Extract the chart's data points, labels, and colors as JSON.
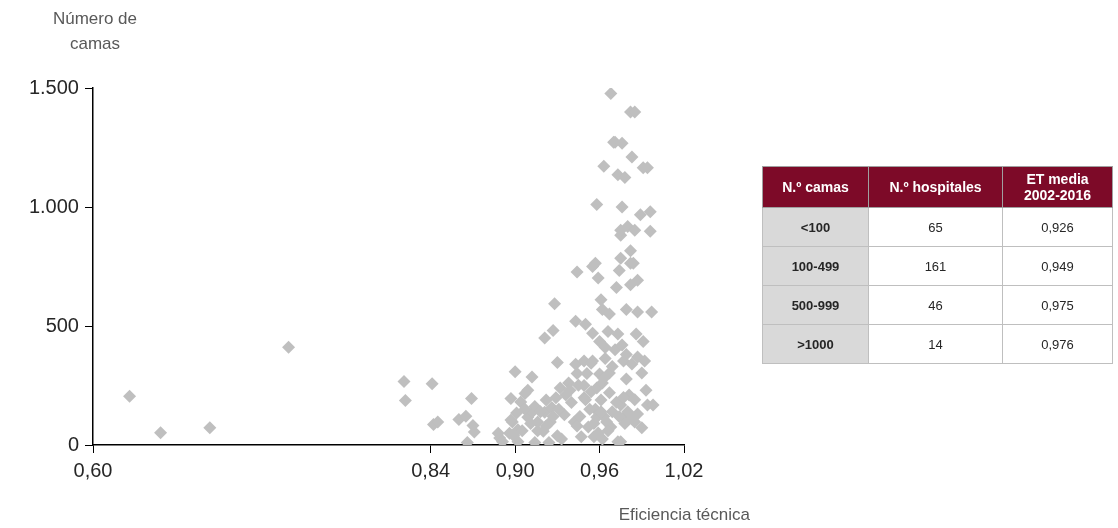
{
  "chart_data": [
    {
      "type": "scatter",
      "xlabel": "Eficiencia técnica",
      "ylabel": "Número de camas",
      "marker": "diamond",
      "xlim": [
        0.6,
        1.02
      ],
      "xticks": [
        {
          "value": 0.6,
          "label": "0,60"
        },
        {
          "value": 0.84,
          "label": "0,84"
        },
        {
          "value": 0.9,
          "label": "0,90"
        },
        {
          "value": 0.96,
          "label": "0,96"
        },
        {
          "value": 1.02,
          "label": "1,02"
        }
      ],
      "ylim": [
        0,
        1500
      ],
      "yticks": [
        0,
        500,
        {
          "value": 1000,
          "label": "1.000"
        },
        {
          "value": 1500,
          "label": "1.500"
        }
      ],
      "series": [
        {
          "color": "#bfbfbf",
          "x": [
            0.626,
            0.648,
            0.683,
            0.739,
            0.821,
            0.822,
            0.841,
            0.842,
            0.845,
            0.86,
            0.865,
            0.869,
            0.87,
            0.871,
            0.866,
            0.888,
            0.889,
            0.891,
            0.897,
            0.896,
            0.898,
            0.897,
            0.9,
            0.899,
            0.901,
            0.902,
            0.902,
            0.904,
            0.907,
            0.909,
            0.912,
            0.909,
            0.912,
            0.914,
            0.914,
            0.916,
            0.92,
            0.921,
            0.922,
            0.921,
            0.924,
            0.925,
            0.926,
            0.927,
            0.928,
            0.929,
            0.93,
            0.93,
            0.932,
            0.933,
            0.935,
            0.938,
            0.94,
            0.943,
            0.944,
            0.943,
            0.942,
            0.944,
            0.945,
            0.947,
            0.949,
            0.95,
            0.949,
            0.952,
            0.954,
            0.955,
            0.955,
            0.956,
            0.955,
            0.957,
            0.958,
            0.959,
            0.958,
            0.96,
            0.96,
            0.961,
            0.961,
            0.962,
            0.963,
            0.962,
            0.964,
            0.968,
            0.965,
            0.966,
            0.967,
            0.967,
            0.968,
            0.97,
            0.971,
            0.972,
            0.973,
            0.973,
            0.973,
            0.974,
            0.975,
            0.975,
            0.975,
            0.976,
            0.976,
            0.975,
            0.975,
            0.977,
            0.977,
            0.978,
            0.979,
            0.979,
            0.98,
            0.981,
            0.982,
            0.982,
            0.982,
            0.982,
            0.983,
            0.984,
            0.985,
            0.985,
            0.985,
            0.986,
            0.987,
            0.987,
            0.989,
            0.99,
            0.99,
            0.991,
            0.991,
            0.992,
            0.993,
            0.994,
            0.996,
            0.994,
            0.996,
            0.997,
            0.998,
            0.954,
            0.958,
            0.962,
            0.957,
            0.963,
            0.966,
            0.969,
            0.972,
            0.974,
            0.977,
            0.978,
            0.98,
            0.983,
            0.985,
            0.987,
            0.969,
            0.971,
            0.964,
            0.967,
            0.976,
            0.979,
            0.983,
            0.987,
            0.963,
            0.951,
            0.946,
            0.939,
            0.936,
            0.931,
            0.927,
            0.918,
            0.922,
            0.916,
            0.907,
            0.911,
            0.905,
            0.956,
            0.959,
            0.961,
            0.953,
            0.95,
            0.944,
            0.949
          ],
          "values": [
            205,
            51,
            72,
            411,
            267,
            187,
            257,
            86,
            97,
            107,
            121,
            195,
            82,
            55,
            10,
            49,
            29,
            14,
            195,
            49,
            97,
            105,
            308,
            39,
            134,
            14,
            64,
            181,
            216,
            230,
            286,
            117,
            138,
            162,
            10,
            97,
            58,
            450,
            189,
            138,
            10,
            97,
            158,
            481,
            594,
            199,
            347,
            39,
            240,
            25,
            127,
            261,
            179,
            520,
            727,
            339,
            97,
            80,
            251,
            35,
            199,
            507,
            353,
            76,
            224,
            750,
            470,
            35,
            353,
            764,
            1011,
            702,
            117,
            298,
            435,
            189,
            610,
            25,
            1171,
            569,
            363,
            1477,
            97,
            477,
            302,
            220,
            76,
            1272,
            1272,
            662,
            1136,
            14,
            466,
            733,
            785,
            881,
            902,
            1000,
            1268,
            14,
            168,
            353,
            113,
            1124,
            569,
            277,
            918,
            210,
            673,
            816,
            764,
            1399,
            1210,
            764,
            1399,
            902,
            97,
            466,
            692,
            559,
            967,
            72,
            302,
            1165,
            435,
            353,
            230,
            1165,
            980,
            168,
            898,
            559,
            168,
            343,
            240,
            261,
            150,
            120,
            60,
            140,
            180,
            120,
            200,
            90,
            140,
            110,
            190,
            130,
            330,
            400,
            410,
            550,
            420,
            380,
            340,
            370,
            280,
            300,
            120,
            230,
            210,
            150,
            120,
            140,
            80,
            60,
            150,
            90,
            60,
            90,
            50,
            140,
            150,
            190,
            300,
            250
          ]
        }
      ]
    },
    {
      "type": "other",
      "legend_title": "N.º camas",
      "categories": [
        "<100",
        "100-499",
        "500-999",
        ">1000"
      ],
      "data_labels": true,
      "series": [
        {
          "name": "N.º hospitales",
          "values": [
            65,
            161,
            46,
            14
          ]
        },
        {
          "name": "ET media 2002-2016",
          "values": [
            0.926,
            0.949,
            0.975,
            0.976
          ],
          "value_labels": [
            "0,926",
            "0,949",
            "0,975",
            "0,976"
          ]
        }
      ]
    }
  ]
}
